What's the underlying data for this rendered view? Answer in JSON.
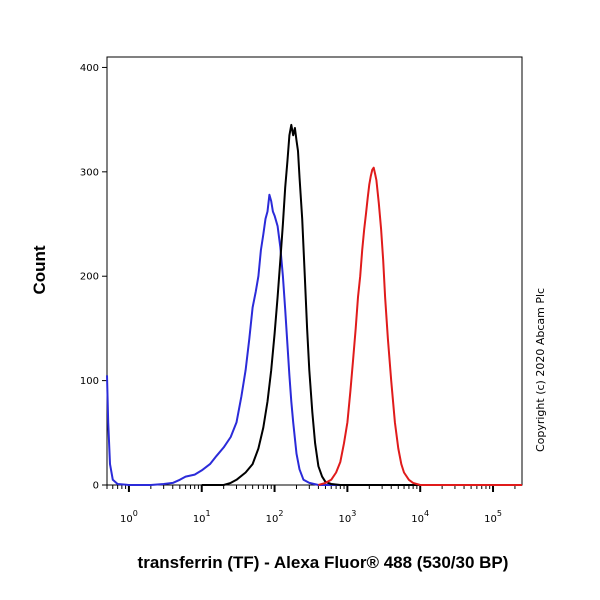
{
  "chart_data": {
    "type": "line",
    "title": "",
    "xlabel": "transferrin (TF) - Alexa Fluor® 488 (530/30 BP)",
    "ylabel": "Count",
    "x_scale": "log",
    "xlim": [
      0.5,
      250000
    ],
    "ylim": [
      0,
      410
    ],
    "x_ticks": [
      {
        "value": 1,
        "base": "10",
        "exp": "0"
      },
      {
        "value": 10,
        "base": "10",
        "exp": "1"
      },
      {
        "value": 100,
        "base": "10",
        "exp": "2"
      },
      {
        "value": 1000,
        "base": "10",
        "exp": "3"
      },
      {
        "value": 10000,
        "base": "10",
        "exp": "4"
      },
      {
        "value": 100000,
        "base": "10",
        "exp": "5"
      }
    ],
    "y_ticks": [
      {
        "value": 0,
        "label": "0"
      },
      {
        "value": 100,
        "label": "100"
      },
      {
        "value": 200,
        "label": "200"
      },
      {
        "value": 300,
        "label": "300"
      },
      {
        "value": 400,
        "label": "400"
      }
    ],
    "grid": false,
    "series": [
      {
        "color": "#2b2bd9",
        "points": [
          [
            0.5,
            105
          ],
          [
            0.52,
            60
          ],
          [
            0.55,
            20
          ],
          [
            0.6,
            5
          ],
          [
            0.7,
            1
          ],
          [
            1,
            0
          ],
          [
            2,
            0
          ],
          [
            3,
            1
          ],
          [
            4,
            2
          ],
          [
            5,
            5
          ],
          [
            6,
            8
          ],
          [
            8,
            10
          ],
          [
            10,
            14
          ],
          [
            13,
            20
          ],
          [
            16,
            28
          ],
          [
            20,
            36
          ],
          [
            25,
            46
          ],
          [
            30,
            60
          ],
          [
            35,
            85
          ],
          [
            40,
            110
          ],
          [
            45,
            140
          ],
          [
            50,
            170
          ],
          [
            55,
            185
          ],
          [
            60,
            200
          ],
          [
            65,
            225
          ],
          [
            70,
            240
          ],
          [
            75,
            255
          ],
          [
            80,
            262
          ],
          [
            85,
            278
          ],
          [
            90,
            272
          ],
          [
            95,
            262
          ],
          [
            100,
            258
          ],
          [
            110,
            248
          ],
          [
            120,
            228
          ],
          [
            130,
            200
          ],
          [
            140,
            168
          ],
          [
            150,
            135
          ],
          [
            160,
            105
          ],
          [
            170,
            80
          ],
          [
            180,
            60
          ],
          [
            200,
            30
          ],
          [
            220,
            15
          ],
          [
            250,
            5
          ],
          [
            300,
            2
          ],
          [
            400,
            0
          ],
          [
            100000,
            0
          ],
          [
            250000,
            0
          ]
        ]
      },
      {
        "color": "#000000",
        "points": [
          [
            10,
            0
          ],
          [
            20,
            0
          ],
          [
            25,
            2
          ],
          [
            30,
            5
          ],
          [
            40,
            12
          ],
          [
            50,
            20
          ],
          [
            60,
            35
          ],
          [
            70,
            55
          ],
          [
            80,
            80
          ],
          [
            90,
            110
          ],
          [
            100,
            145
          ],
          [
            110,
            180
          ],
          [
            120,
            215
          ],
          [
            130,
            250
          ],
          [
            140,
            285
          ],
          [
            150,
            310
          ],
          [
            160,
            335
          ],
          [
            170,
            345
          ],
          [
            180,
            335
          ],
          [
            190,
            342
          ],
          [
            200,
            330
          ],
          [
            210,
            320
          ],
          [
            220,
            295
          ],
          [
            240,
            255
          ],
          [
            260,
            200
          ],
          [
            280,
            150
          ],
          [
            300,
            110
          ],
          [
            330,
            70
          ],
          [
            360,
            40
          ],
          [
            400,
            18
          ],
          [
            450,
            8
          ],
          [
            500,
            3
          ],
          [
            600,
            1
          ],
          [
            800,
            0
          ],
          [
            100000,
            0
          ],
          [
            250000,
            0
          ]
        ]
      },
      {
        "color": "#e01b1b",
        "points": [
          [
            400,
            0
          ],
          [
            500,
            2
          ],
          [
            600,
            5
          ],
          [
            700,
            12
          ],
          [
            800,
            22
          ],
          [
            900,
            40
          ],
          [
            1000,
            60
          ],
          [
            1100,
            90
          ],
          [
            1200,
            120
          ],
          [
            1300,
            150
          ],
          [
            1400,
            180
          ],
          [
            1500,
            200
          ],
          [
            1600,
            225
          ],
          [
            1700,
            245
          ],
          [
            1800,
            260
          ],
          [
            1900,
            275
          ],
          [
            2000,
            288
          ],
          [
            2100,
            296
          ],
          [
            2200,
            302
          ],
          [
            2300,
            304
          ],
          [
            2400,
            298
          ],
          [
            2500,
            292
          ],
          [
            2700,
            270
          ],
          [
            2900,
            245
          ],
          [
            3100,
            215
          ],
          [
            3300,
            180
          ],
          [
            3600,
            140
          ],
          [
            4000,
            100
          ],
          [
            4500,
            60
          ],
          [
            5000,
            35
          ],
          [
            5500,
            20
          ],
          [
            6000,
            12
          ],
          [
            7000,
            5
          ],
          [
            8000,
            2
          ],
          [
            10000,
            0
          ],
          [
            100000,
            0
          ],
          [
            250000,
            0
          ]
        ]
      }
    ]
  },
  "watermark": "Copyright (c) 2020 Abcam Plc"
}
